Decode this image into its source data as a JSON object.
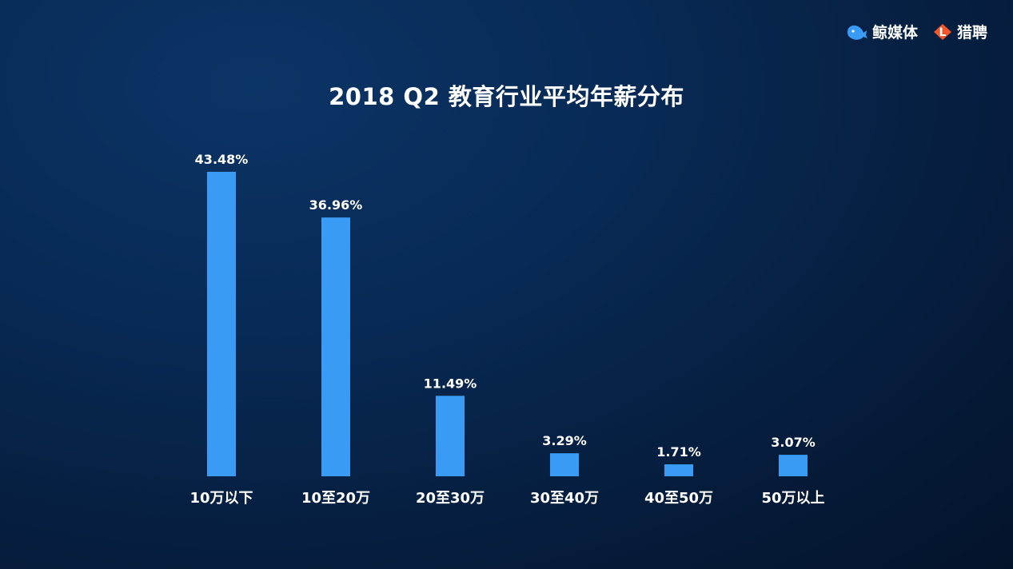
{
  "brand": {
    "logo1_text": "鲸媒体",
    "logo2_text": "猎聘",
    "logo2_mark": "L"
  },
  "colors": {
    "bar": "#3a9bf5",
    "text": "#ffffff",
    "logo1": "#3a9bf5",
    "logo2": "#f0562a"
  },
  "chart_data": {
    "type": "bar",
    "title": "2018 Q2 教育行业平均年薪分布",
    "categories": [
      "10万以下",
      "10至20万",
      "20至30万",
      "30至40万",
      "40至50万",
      "50万以上"
    ],
    "values": [
      43.48,
      36.96,
      11.49,
      3.29,
      1.71,
      3.07
    ],
    "value_labels": [
      "43.48%",
      "36.96%",
      "11.49%",
      "3.29%",
      "1.71%",
      "3.07%"
    ],
    "ylim": [
      0,
      43.48
    ],
    "grid": false,
    "legend": "none"
  }
}
